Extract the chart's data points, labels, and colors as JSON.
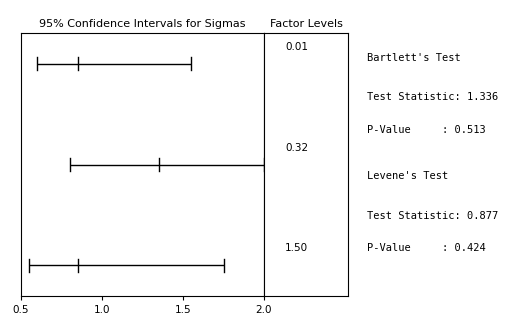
{
  "title_left": "95% Confidence Intervals for Sigmas",
  "title_right": "Factor Levels",
  "factor_levels": [
    "0.01",
    "0.32",
    "1.50"
  ],
  "ci_low": [
    0.6,
    0.8,
    0.55
  ],
  "ci_high": [
    1.55,
    2.0,
    1.75
  ],
  "ci_mid": [
    0.85,
    1.35,
    0.85
  ],
  "xlim": [
    0.5,
    2.0
  ],
  "xticks": [
    0.5,
    1.0,
    1.5,
    2.0
  ],
  "xticklabels": [
    "0.5",
    "1.0",
    "1.5",
    "2.0"
  ],
  "bartlett_label": "Bartlett's Test",
  "bartlett_stat_label": "Test Statistic: 1.336",
  "bartlett_pval_label": "P-Value     : 0.513",
  "levene_label": "Levene's Test",
  "levene_stat_label": "Test Statistic: 0.877",
  "levene_pval_label": "P-Value     : 0.424",
  "line_color": "#000000",
  "bg_color": "#ffffff",
  "font_size": 7.5,
  "title_font_size": 8
}
